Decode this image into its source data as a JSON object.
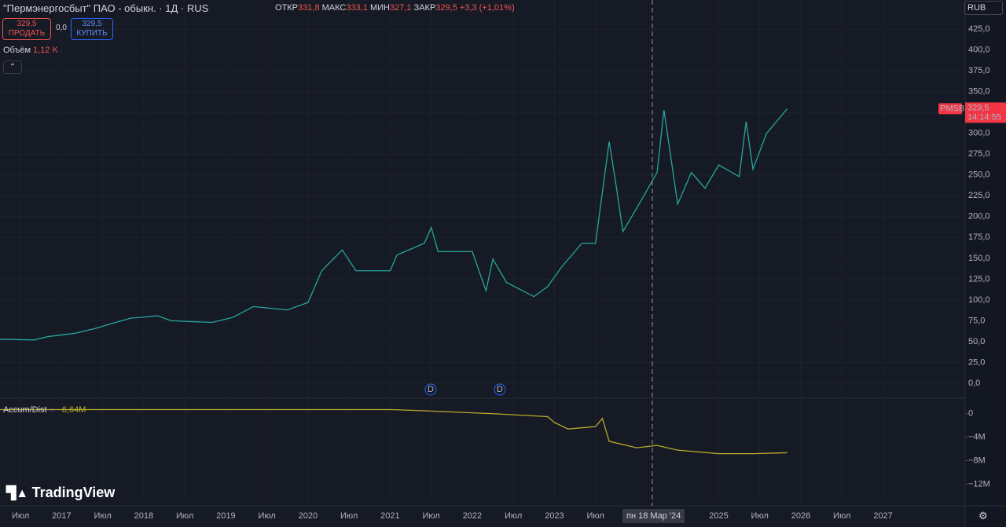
{
  "header": {
    "symbol": "\"Пермэнергосбыт\" ПАО - обыкн. · 1Д · RUS",
    "open_label": "ОТКР",
    "open": "331,8",
    "high_label": "МАКС",
    "high": "333,1",
    "low_label": "МИН",
    "low": "327,1",
    "close_label": "ЗАКР",
    "close": "329,5",
    "change": "+3,3 (+1,01%)",
    "sell_price": "329,5",
    "sell": "ПРОДАТЬ",
    "spread": "0,0",
    "buy_price": "329,5",
    "buy": "КУПИТЬ",
    "volume_label": "Объём",
    "volume": "1,12 K",
    "currency": "RUB",
    "price_tag": "329,5",
    "countdown": "14:14:55",
    "crosshair_date": "пн 18 Мар '24",
    "dividends": [
      "D",
      "D"
    ],
    "logo": "TradingView"
  },
  "chart_data": [
    {
      "type": "line",
      "xlim": [
        "2016-04",
        "2028-01"
      ],
      "ylim": [
        -17,
        460
      ],
      "grid": true,
      "x": [
        "2016-04",
        "2016-09",
        "2016-11",
        "2017-03",
        "2017-06",
        "2017-11",
        "2018-03",
        "2018-05",
        "2018-11",
        "2019-02",
        "2019-05",
        "2019-10",
        "2020-01",
        "2020-03",
        "2020-06",
        "2020-08",
        "2021-01",
        "2021-02",
        "2021-06",
        "2021-07",
        "2021-08",
        "2022-01",
        "2022-03",
        "2022-04",
        "2022-06",
        "2022-10",
        "2022-12",
        "2023-02",
        "2023-05",
        "2023-07",
        "2023-09",
        "2023-10",
        "2023-11",
        "2024-02",
        "2024-04",
        "2024-05",
        "2024-07",
        "2024-09",
        "2024-11",
        "2025-01",
        "2025-04",
        "2025-05",
        "2025-06",
        "2025-08",
        "2025-11"
      ],
      "series": [
        {
          "name": "PMSB",
          "color": "#26a69a",
          "values": [
            52.8,
            52,
            56,
            60,
            66,
            78,
            81,
            75,
            73,
            79,
            92,
            88,
            97,
            135,
            160,
            135,
            135,
            154,
            168,
            187,
            158,
            158,
            111,
            149,
            121,
            104,
            116,
            139,
            168,
            168,
            290,
            238,
            182,
            224,
            253,
            328,
            215,
            253,
            234,
            262,
            248,
            314,
            257,
            300,
            329.5
          ]
        }
      ],
      "yticks": [
        {
          "value": 0,
          "label": "0,0"
        },
        {
          "value": 25,
          "label": "25,0"
        },
        {
          "value": 50,
          "label": "50,0"
        },
        {
          "value": 75,
          "label": "75,0"
        },
        {
          "value": 100,
          "label": "100,0"
        },
        {
          "value": 125,
          "label": "125,0"
        },
        {
          "value": 150,
          "label": "150,0"
        },
        {
          "value": 175,
          "label": "175,0"
        },
        {
          "value": 200,
          "label": "200,0"
        },
        {
          "value": 225,
          "label": "225,0"
        },
        {
          "value": 250,
          "label": "250,0"
        },
        {
          "value": 275,
          "label": "275,0"
        },
        {
          "value": 300,
          "label": "300,0"
        },
        {
          "value": 325,
          "label": "325,0"
        },
        {
          "value": 350,
          "label": "350,0"
        },
        {
          "value": 375,
          "label": "375,0"
        },
        {
          "value": 400,
          "label": "400,0"
        },
        {
          "value": 425,
          "label": "425,0"
        }
      ],
      "xticks": [
        {
          "value": "2016-07",
          "label": "Июл"
        },
        {
          "value": "2017-01",
          "label": "2017"
        },
        {
          "value": "2017-07",
          "label": "Июл"
        },
        {
          "value": "2018-01",
          "label": "2018"
        },
        {
          "value": "2018-07",
          "label": "Июл"
        },
        {
          "value": "2019-01",
          "label": "2019"
        },
        {
          "value": "2019-07",
          "label": "Июл"
        },
        {
          "value": "2020-01",
          "label": "2020"
        },
        {
          "value": "2020-07",
          "label": "Июл"
        },
        {
          "value": "2021-01",
          "label": "2021"
        },
        {
          "value": "2021-07",
          "label": "Июл"
        },
        {
          "value": "2022-01",
          "label": "2022"
        },
        {
          "value": "2022-07",
          "label": "Июл"
        },
        {
          "value": "2023-01",
          "label": "2023"
        },
        {
          "value": "2023-07",
          "label": "Июл"
        },
        {
          "value": "2025-01",
          "label": "2025"
        },
        {
          "value": "2025-07",
          "label": "Июл"
        },
        {
          "value": "2026-01",
          "label": "2026"
        },
        {
          "value": "2026-07",
          "label": "Июл"
        },
        {
          "value": "2027-01",
          "label": "2027"
        }
      ]
    },
    {
      "type": "line",
      "title": "Accum/Dist",
      "current_label": "−6,64M",
      "xlim": [
        "2016-04",
        "2028-01"
      ],
      "ylim": [
        -15000000,
        2500000
      ],
      "x": [
        "2016-04",
        "2021-01",
        "2021-06",
        "2022-04",
        "2022-12",
        "2023-01",
        "2023-03",
        "2023-07",
        "2023-08",
        "2023-09",
        "2024-01",
        "2024-04",
        "2024-07",
        "2025-01",
        "2025-06",
        "2025-11"
      ],
      "series": [
        {
          "name": "Accum/Dist",
          "color": "#b8ab2c",
          "values": [
            700000,
            700000,
            500000,
            0,
            -500000,
            -1500000,
            -2600000,
            -2200000,
            -800000,
            -4700000,
            -5800000,
            -5400000,
            -6200000,
            -6800000,
            -6800000,
            -6640000
          ]
        }
      ],
      "yticks": [
        0,
        {
          "value": -4000000,
          "label": "−4M"
        },
        {
          "value": -8000000,
          "label": "−8M"
        },
        {
          "value": -12000000,
          "label": "−12M"
        }
      ]
    }
  ]
}
